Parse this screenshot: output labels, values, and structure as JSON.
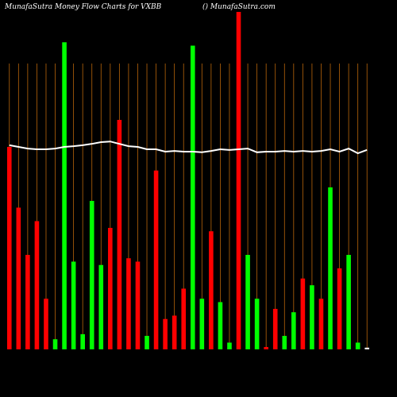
{
  "chart_data": {
    "type": "bar",
    "title": "MunafaSutra  Money Flow  Charts for VXBB",
    "subtitle": "() MunafaSutra.com",
    "categories": [
      null,
      null,
      null,
      null,
      null,
      null,
      null,
      null,
      null,
      null,
      null,
      null,
      null,
      null,
      null,
      null,
      null,
      null,
      null,
      null,
      null,
      null,
      null,
      null,
      null,
      null,
      null,
      null,
      null,
      null,
      null,
      null,
      null,
      null,
      null,
      null,
      null,
      null,
      null,
      null
    ],
    "series": [
      {
        "type": "bar",
        "colors": [
          "#ff0000",
          "#ff0000",
          "#ff0000",
          "#ff0000",
          "#ff0000",
          "#00ff00",
          "#00ff00",
          "#00ff00",
          "#00ff00",
          "#00ff00",
          "#00ff00",
          "#ff0000",
          "#ff0000",
          "#ff0000",
          "#ff0000",
          "#00ff00",
          "#ff0000",
          "#ff0000",
          "#ff0000",
          "#ff0000",
          "#00ff00",
          "#00ff00",
          "#ff0000",
          "#00ff00",
          "#00ff00",
          "#ff0000",
          "#00ff00",
          "#00ff00",
          "#ff0000",
          "#ff0000",
          "#00ff00",
          "#00ff00",
          "#ff0000",
          "#00ff00",
          "#ff0000",
          "#00ff00",
          "#ff0000",
          "#00ff00",
          "#00ff00",
          "#ffffff"
        ],
        "values": [
          60,
          42,
          28,
          38,
          15,
          3,
          91,
          26,
          4.5,
          44,
          25,
          36,
          68,
          27,
          26,
          4,
          53,
          9,
          10,
          18,
          90,
          15,
          35,
          14,
          2,
          100,
          28,
          15,
          0.7,
          12,
          4,
          11,
          21,
          19,
          15,
          48,
          24,
          28,
          2,
          0.5
        ]
      },
      {
        "type": "line",
        "color": "#ffffff",
        "values": [
          60.5,
          60,
          59.5,
          59.3,
          59.3,
          59.5,
          60,
          60.2,
          60.5,
          60.9,
          61.4,
          61.6,
          60.9,
          60.2,
          60,
          59.3,
          59.3,
          58.6,
          58.8,
          58.6,
          58.6,
          58.4,
          58.8,
          59.3,
          59.1,
          59.3,
          59.5,
          58.4,
          58.6,
          58.6,
          58.8,
          58.6,
          58.8,
          58.6,
          58.8,
          59.3,
          58.6,
          59.5,
          58.1,
          59.1
        ]
      }
    ],
    "grid_color": "#b8650a",
    "ylim": [
      0,
      100
    ]
  }
}
